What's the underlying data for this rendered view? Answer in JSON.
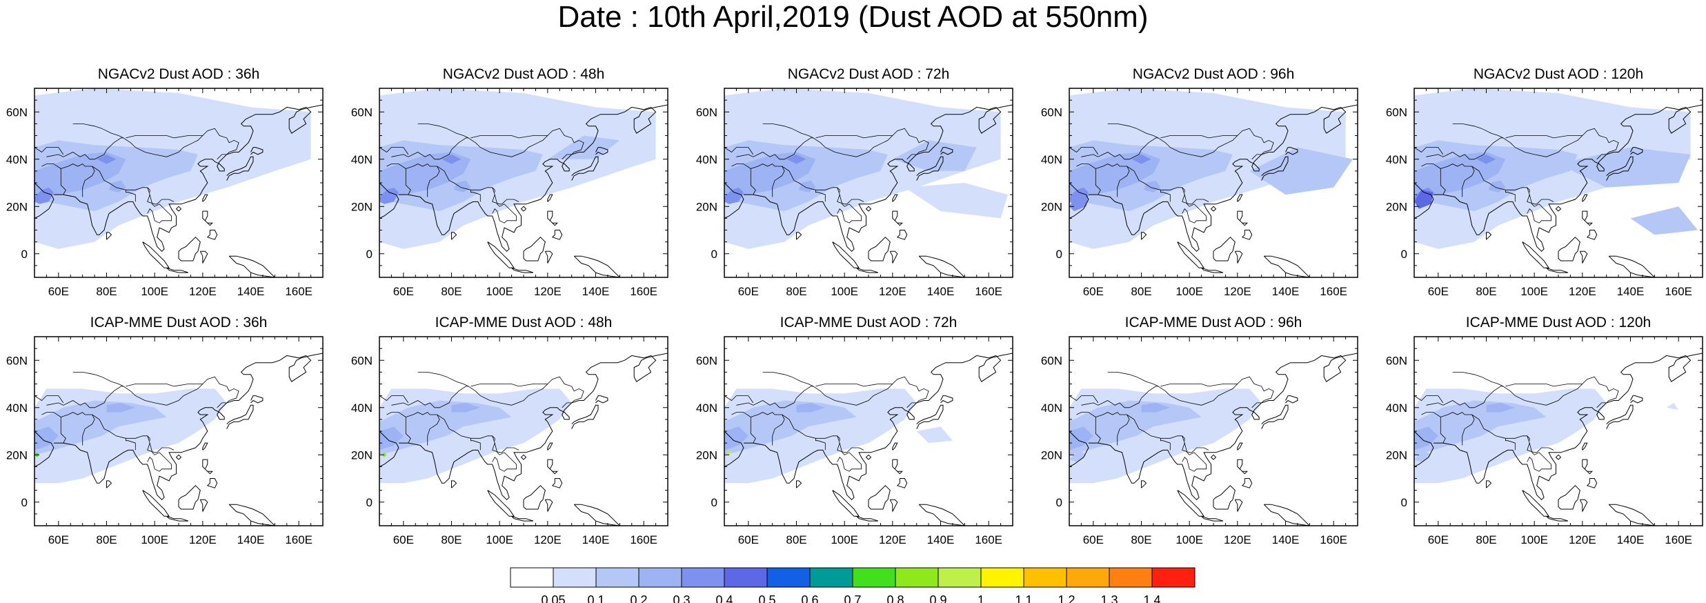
{
  "title": "Date : 10th April,2019 (Dust AOD at 550nm)",
  "panels": [
    [
      {
        "title": "NGACv2 Dust AOD : 36h",
        "model": "NGACv2",
        "lead_hours": 36
      },
      {
        "title": "NGACv2 Dust AOD : 48h",
        "model": "NGACv2",
        "lead_hours": 48
      },
      {
        "title": "NGACv2 Dust AOD : 72h",
        "model": "NGACv2",
        "lead_hours": 72
      },
      {
        "title": "NGACv2 Dust AOD : 96h",
        "model": "NGACv2",
        "lead_hours": 96
      },
      {
        "title": "NGACv2 Dust AOD : 120h",
        "model": "NGACv2",
        "lead_hours": 120
      }
    ],
    [
      {
        "title": "ICAP-MME Dust AOD : 36h",
        "model": "ICAP-MME",
        "lead_hours": 36
      },
      {
        "title": "ICAP-MME Dust AOD : 48h",
        "model": "ICAP-MME",
        "lead_hours": 48
      },
      {
        "title": "ICAP-MME Dust AOD : 72h",
        "model": "ICAP-MME",
        "lead_hours": 72
      },
      {
        "title": "ICAP-MME Dust AOD : 96h",
        "model": "ICAP-MME",
        "lead_hours": 96
      },
      {
        "title": "ICAP-MME Dust AOD : 120h",
        "model": "ICAP-MME",
        "lead_hours": 120
      }
    ]
  ],
  "axes": {
    "lon_range": [
      50,
      170
    ],
    "lat_range": [
      -10,
      70
    ],
    "lon_ticks": [
      "60E",
      "80E",
      "100E",
      "120E",
      "140E",
      "160E"
    ],
    "lon_tick_values": [
      60,
      80,
      100,
      120,
      140,
      160
    ],
    "lat_ticks": [
      "0",
      "20N",
      "40N",
      "60N"
    ],
    "lat_tick_values": [
      0,
      20,
      40,
      60
    ]
  },
  "colorbar": {
    "labels": [
      "0.05",
      "0.1",
      "0.2",
      "0.3",
      "0.4",
      "0.5",
      "0.6",
      "0.7",
      "0.8",
      "0.9",
      "1",
      "1.1",
      "1.2",
      "1.3",
      "1.4"
    ],
    "colors": [
      "#ffffff",
      "#d4e0fb",
      "#b5c7f6",
      "#9db3f3",
      "#7d91ee",
      "#5d68e6",
      "#1160e6",
      "#009a98",
      "#42e01c",
      "#8ee81c",
      "#bff04a",
      "#fff400",
      "#ffc000",
      "#ffa80c",
      "#ff7f10",
      "#ff2010"
    ]
  }
}
